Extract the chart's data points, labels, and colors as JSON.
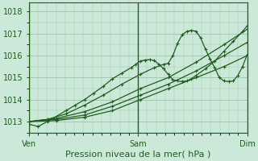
{
  "title": "",
  "xlabel": "Pression niveau de la mer( hPa )",
  "ylabel": "",
  "bg_color": "#cce8d8",
  "grid_color": "#a0c8b0",
  "line_color": "#1e5e1e",
  "ylim": [
    1012.5,
    1018.4
  ],
  "yticks": [
    1013,
    1014,
    1015,
    1016,
    1017,
    1018
  ],
  "xtick_labels": [
    "Ven",
    "Sam",
    "Dim"
  ],
  "xtick_positions": [
    0.0,
    0.5,
    1.0
  ],
  "n_points": 48,
  "marker": "+",
  "marker_size": 3.5,
  "marker_every": 2,
  "line_width": 0.9,
  "tick_label_color": "#1e5e1e",
  "tick_label_size": 7,
  "xlabel_size": 8,
  "series": [
    {
      "points": [
        [
          0,
          1013.0
        ],
        [
          6,
          1013.05
        ],
        [
          12,
          1013.2
        ],
        [
          18,
          1013.5
        ],
        [
          24,
          1014.0
        ],
        [
          30,
          1014.5
        ],
        [
          36,
          1015.0
        ],
        [
          42,
          1015.5
        ],
        [
          47,
          1016.0
        ]
      ]
    },
    {
      "points": [
        [
          0,
          1013.0
        ],
        [
          6,
          1013.1
        ],
        [
          12,
          1013.3
        ],
        [
          18,
          1013.7
        ],
        [
          24,
          1014.2
        ],
        [
          30,
          1014.7
        ],
        [
          36,
          1015.3
        ],
        [
          42,
          1016.0
        ],
        [
          47,
          1016.6
        ]
      ]
    },
    {
      "points": [
        [
          0,
          1013.0
        ],
        [
          6,
          1013.15
        ],
        [
          12,
          1013.45
        ],
        [
          18,
          1013.9
        ],
        [
          24,
          1014.5
        ],
        [
          30,
          1015.0
        ],
        [
          36,
          1015.7
        ],
        [
          42,
          1016.5
        ],
        [
          47,
          1017.2
        ]
      ]
    },
    {
      "points": [
        [
          0,
          1012.88
        ],
        [
          2,
          1012.78
        ],
        [
          4,
          1013.0
        ],
        [
          8,
          1013.5
        ],
        [
          10,
          1013.75
        ],
        [
          12,
          1014.0
        ],
        [
          14,
          1014.3
        ],
        [
          16,
          1014.6
        ],
        [
          18,
          1014.95
        ],
        [
          20,
          1015.2
        ],
        [
          22,
          1015.45
        ],
        [
          23,
          1015.6
        ],
        [
          24,
          1015.75
        ],
        [
          25,
          1015.8
        ],
        [
          26,
          1015.82
        ],
        [
          27,
          1015.78
        ],
        [
          28,
          1015.6
        ],
        [
          29,
          1015.4
        ],
        [
          30,
          1015.15
        ],
        [
          31,
          1014.9
        ],
        [
          32,
          1014.85
        ],
        [
          33,
          1014.82
        ],
        [
          34,
          1014.85
        ],
        [
          35,
          1014.95
        ],
        [
          36,
          1015.1
        ],
        [
          38,
          1015.4
        ],
        [
          40,
          1015.75
        ],
        [
          42,
          1016.2
        ],
        [
          44,
          1016.65
        ],
        [
          46,
          1017.1
        ],
        [
          47,
          1017.35
        ]
      ]
    },
    {
      "points": [
        [
          0,
          1013.0
        ],
        [
          4,
          1013.1
        ],
        [
          8,
          1013.35
        ],
        [
          12,
          1013.75
        ],
        [
          16,
          1014.2
        ],
        [
          20,
          1014.7
        ],
        [
          24,
          1015.15
        ],
        [
          27,
          1015.45
        ],
        [
          29,
          1015.6
        ],
        [
          30,
          1015.65
        ],
        [
          31,
          1016.0
        ],
        [
          32,
          1016.55
        ],
        [
          33,
          1016.95
        ],
        [
          34,
          1017.1
        ],
        [
          35,
          1017.15
        ],
        [
          36,
          1017.1
        ],
        [
          37,
          1016.8
        ],
        [
          38,
          1016.3
        ],
        [
          39,
          1015.85
        ],
        [
          40,
          1015.45
        ],
        [
          41,
          1015.0
        ],
        [
          42,
          1014.85
        ],
        [
          43,
          1014.82
        ],
        [
          44,
          1014.85
        ],
        [
          45,
          1015.1
        ],
        [
          46,
          1015.5
        ],
        [
          47,
          1016.05
        ]
      ]
    }
  ]
}
